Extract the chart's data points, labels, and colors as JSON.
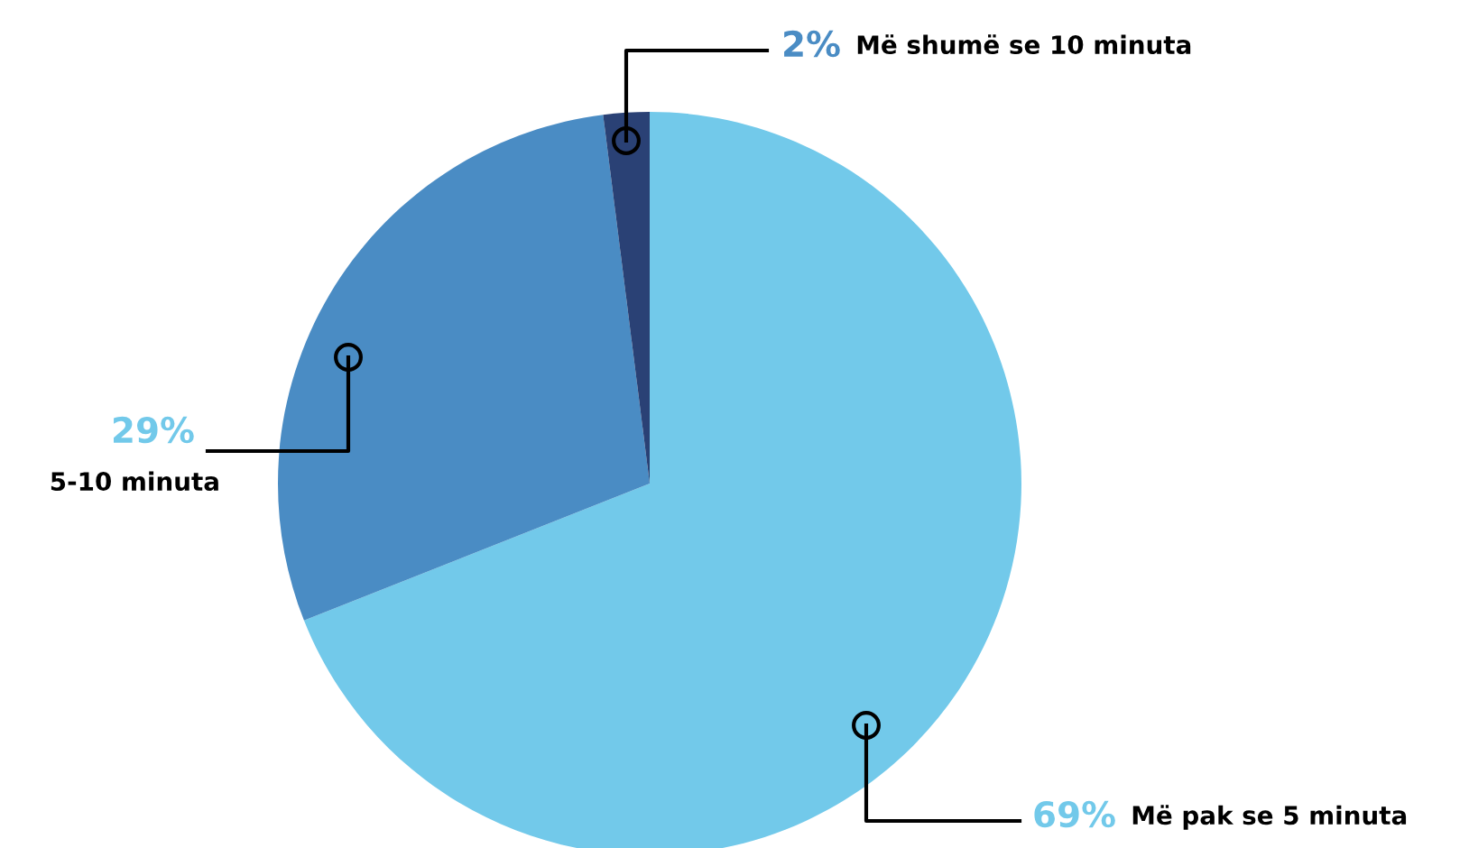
{
  "chart_data": {
    "type": "pie",
    "categories": [
      "Më pak se 5 minuta",
      "5-10 minuta",
      "Më shumë se 10 minuta"
    ],
    "values": [
      69,
      29,
      2
    ],
    "colors": [
      "#72c9ea",
      "#4a8cc4",
      "#2a4175"
    ],
    "value_labels": [
      "69%",
      "29%",
      "2%"
    ]
  }
}
